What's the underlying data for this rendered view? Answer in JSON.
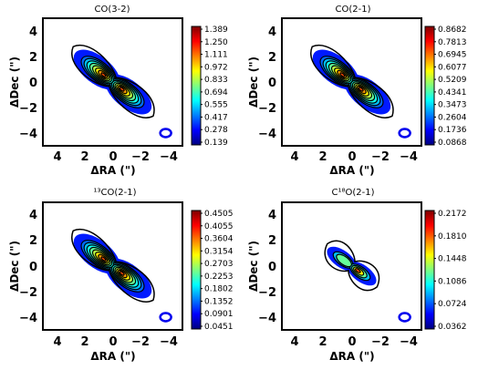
{
  "chart_data": [
    {
      "type": "heatmap",
      "title": "CO(3-2)",
      "xlabel": "ΔRA (\")",
      "ylabel": "ΔDec (\")",
      "xlim": [
        5,
        -5
      ],
      "ylim": [
        -5,
        5
      ],
      "xticks": [
        "4",
        "2",
        "0",
        "−2",
        "−4"
      ],
      "yticks": [
        "4",
        "2",
        "0",
        "−2",
        "−4"
      ],
      "colorbar": {
        "labels": [
          "1.389",
          "1.250",
          "1.111",
          "0.972",
          "0.833",
          "0.694",
          "0.555",
          "0.417",
          "0.278",
          "0.139"
        ],
        "range": [
          0.139,
          1.389
        ]
      },
      "peak": 1.389,
      "c18o": false
    },
    {
      "type": "heatmap",
      "title": "CO(2-1)",
      "xlabel": "ΔRA (\")",
      "ylabel": "ΔDec (\")",
      "xlim": [
        5,
        -5
      ],
      "ylim": [
        -5,
        5
      ],
      "xticks": [
        "4",
        "2",
        "0",
        "−2",
        "−4"
      ],
      "yticks": [
        "4",
        "2",
        "0",
        "−2",
        "−4"
      ],
      "colorbar": {
        "labels": [
          "0.8682",
          "0.7813",
          "0.6945",
          "0.6077",
          "0.5209",
          "0.4341",
          "0.3473",
          "0.2604",
          "0.1736",
          "0.0868"
        ],
        "range": [
          0.0868,
          0.8682
        ]
      },
      "peak": 0.8682,
      "c18o": false
    },
    {
      "type": "heatmap",
      "title": "¹³CO(2-1)",
      "xlabel": "ΔRA (\")",
      "ylabel": "ΔDec (\")",
      "xlim": [
        5,
        -5
      ],
      "ylim": [
        -5,
        5
      ],
      "xticks": [
        "4",
        "2",
        "0",
        "−2",
        "−4"
      ],
      "yticks": [
        "4",
        "2",
        "0",
        "−2",
        "−4"
      ],
      "colorbar": {
        "labels": [
          "0.4505",
          "0.4055",
          "0.3604",
          "0.3154",
          "0.2703",
          "0.2253",
          "0.1802",
          "0.1352",
          "0.0901",
          "0.0451"
        ],
        "range": [
          0.0451,
          0.4505
        ]
      },
      "peak": 0.4505,
      "c18o": false
    },
    {
      "type": "heatmap",
      "title": "C¹⁸O(2-1)",
      "xlabel": "ΔRA (\")",
      "ylabel": "ΔDec (\")",
      "xlim": [
        5,
        -5
      ],
      "ylim": [
        -5,
        5
      ],
      "xticks": [
        "4",
        "2",
        "0",
        "−2",
        "−4"
      ],
      "yticks": [
        "4",
        "2",
        "0",
        "−2",
        "−4"
      ],
      "colorbar": {
        "labels": [
          "0.2172",
          "0.1810",
          "0.1448",
          "0.1086",
          "0.0724",
          "0.0362"
        ],
        "range": [
          0.0362,
          0.2172
        ]
      },
      "peak": 0.2172,
      "c18o": true
    }
  ]
}
